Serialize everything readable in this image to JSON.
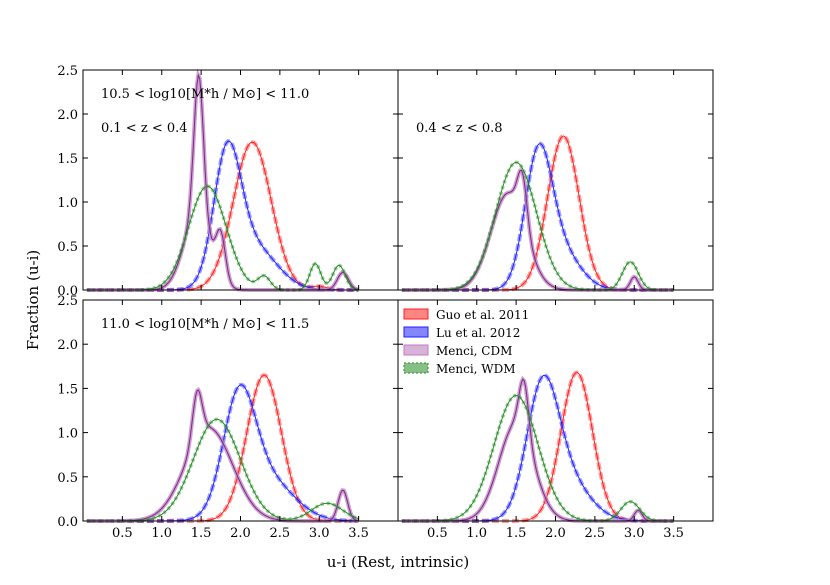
{
  "chart_data": {
    "type": "line",
    "xlabel": "u-i (Rest, intrinsic)",
    "ylabel": "Fraction (u-i)",
    "xlim": [
      0,
      4.0
    ],
    "ylim": [
      0,
      2.5
    ],
    "x_ticks": [
      "0.5",
      "1.0",
      "1.5",
      "2.0",
      "2.5",
      "3.0",
      "3.5"
    ],
    "x_tick_values": [
      0.5,
      1.0,
      1.5,
      2.0,
      2.5,
      3.0,
      3.5
    ],
    "y_ticks": [
      "0.0",
      "0.5",
      "1.0",
      "1.5",
      "2.0",
      "2.5"
    ],
    "y_tick_values": [
      0.0,
      0.5,
      1.0,
      1.5,
      2.0,
      2.5
    ],
    "legend": [
      {
        "name": "Guo et al. 2011",
        "color": "#ff2020"
      },
      {
        "name": "Lu et al. 2012",
        "color": "#2020ff"
      },
      {
        "name": "Menci, CDM",
        "color": "#bf7fbf"
      },
      {
        "name": "Menci, WDM",
        "color": "#228b22"
      }
    ],
    "panels": [
      {
        "annotations": [
          "10.5 < log10[M*h / M⊙] < 11.0",
          "0.1 < z < 0.4"
        ],
        "series": [
          {
            "name": "Guo et al. 2011",
            "peaks": [
              {
                "mu": 2.15,
                "sigma": 0.24,
                "amp": 1.68
              }
            ],
            "extra": [
              [
                3.0,
                0.1,
                0.04
              ]
            ]
          },
          {
            "name": "Lu et al. 2012",
            "peaks": [
              {
                "mu": 1.83,
                "sigma": 0.17,
                "amp": 1.4
              },
              {
                "mu": 2.15,
                "sigma": 0.3,
                "amp": 0.5
              }
            ]
          },
          {
            "name": "Menci, CDM",
            "peaks": [
              {
                "mu": 1.47,
                "sigma": 0.06,
                "amp": 1.6
              },
              {
                "mu": 1.45,
                "sigma": 0.17,
                "amp": 0.85
              },
              {
                "mu": 1.75,
                "sigma": 0.06,
                "amp": 0.5
              },
              {
                "mu": 3.3,
                "sigma": 0.07,
                "amp": 0.2
              }
            ]
          },
          {
            "name": "Menci, WDM",
            "peaks": [
              {
                "mu": 1.58,
                "sigma": 0.24,
                "amp": 1.18
              },
              {
                "mu": 2.3,
                "sigma": 0.08,
                "amp": 0.15
              },
              {
                "mu": 2.95,
                "sigma": 0.07,
                "amp": 0.3
              },
              {
                "mu": 3.25,
                "sigma": 0.08,
                "amp": 0.28
              }
            ]
          }
        ]
      },
      {
        "annotations": [
          "0.4 < z < 0.8"
        ],
        "series": [
          {
            "name": "Guo et al. 2011",
            "peaks": [
              {
                "mu": 2.1,
                "sigma": 0.2,
                "amp": 1.75
              }
            ]
          },
          {
            "name": "Lu et al. 2012",
            "peaks": [
              {
                "mu": 1.78,
                "sigma": 0.17,
                "amp": 1.4
              },
              {
                "mu": 2.05,
                "sigma": 0.25,
                "amp": 0.45
              }
            ]
          },
          {
            "name": "Menci, CDM",
            "peaks": [
              {
                "mu": 1.4,
                "sigma": 0.22,
                "amp": 1.1
              },
              {
                "mu": 1.58,
                "sigma": 0.06,
                "amp": 0.55
              },
              {
                "mu": 3.0,
                "sigma": 0.05,
                "amp": 0.15
              }
            ]
          },
          {
            "name": "Menci, WDM",
            "peaks": [
              {
                "mu": 1.5,
                "sigma": 0.26,
                "amp": 1.45
              },
              {
                "mu": 2.95,
                "sigma": 0.1,
                "amp": 0.32
              }
            ]
          }
        ]
      },
      {
        "annotations": [
          "11.0 < log10[M*h / M⊙] < 11.5"
        ],
        "series": [
          {
            "name": "Guo et al. 2011",
            "peaks": [
              {
                "mu": 2.3,
                "sigma": 0.22,
                "amp": 1.65
              }
            ]
          },
          {
            "name": "Lu et al. 2012",
            "peaks": [
              {
                "mu": 1.98,
                "sigma": 0.2,
                "amp": 1.2
              },
              {
                "mu": 2.3,
                "sigma": 0.35,
                "amp": 0.5
              }
            ]
          },
          {
            "name": "Menci, CDM",
            "peaks": [
              {
                "mu": 1.6,
                "sigma": 0.3,
                "amp": 1.05
              },
              {
                "mu": 1.45,
                "sigma": 0.06,
                "amp": 0.55
              },
              {
                "mu": 3.3,
                "sigma": 0.06,
                "amp": 0.35
              }
            ]
          },
          {
            "name": "Menci, WDM",
            "peaks": [
              {
                "mu": 1.7,
                "sigma": 0.3,
                "amp": 1.15
              },
              {
                "mu": 3.1,
                "sigma": 0.2,
                "amp": 0.2
              }
            ]
          }
        ]
      },
      {
        "annotations": [],
        "series": [
          {
            "name": "Guo et al. 2011",
            "peaks": [
              {
                "mu": 2.27,
                "sigma": 0.2,
                "amp": 1.68
              }
            ]
          },
          {
            "name": "Lu et al. 2012",
            "peaks": [
              {
                "mu": 1.83,
                "sigma": 0.2,
                "amp": 1.3
              },
              {
                "mu": 2.1,
                "sigma": 0.3,
                "amp": 0.5
              }
            ]
          },
          {
            "name": "Menci, CDM",
            "peaks": [
              {
                "mu": 1.5,
                "sigma": 0.22,
                "amp": 1.1
              },
              {
                "mu": 1.6,
                "sigma": 0.06,
                "amp": 0.6
              },
              {
                "mu": 3.05,
                "sigma": 0.05,
                "amp": 0.12
              }
            ]
          },
          {
            "name": "Menci, WDM",
            "peaks": [
              {
                "mu": 1.5,
                "sigma": 0.28,
                "amp": 1.42
              },
              {
                "mu": 2.95,
                "sigma": 0.12,
                "amp": 0.22
              }
            ]
          }
        ]
      }
    ]
  }
}
